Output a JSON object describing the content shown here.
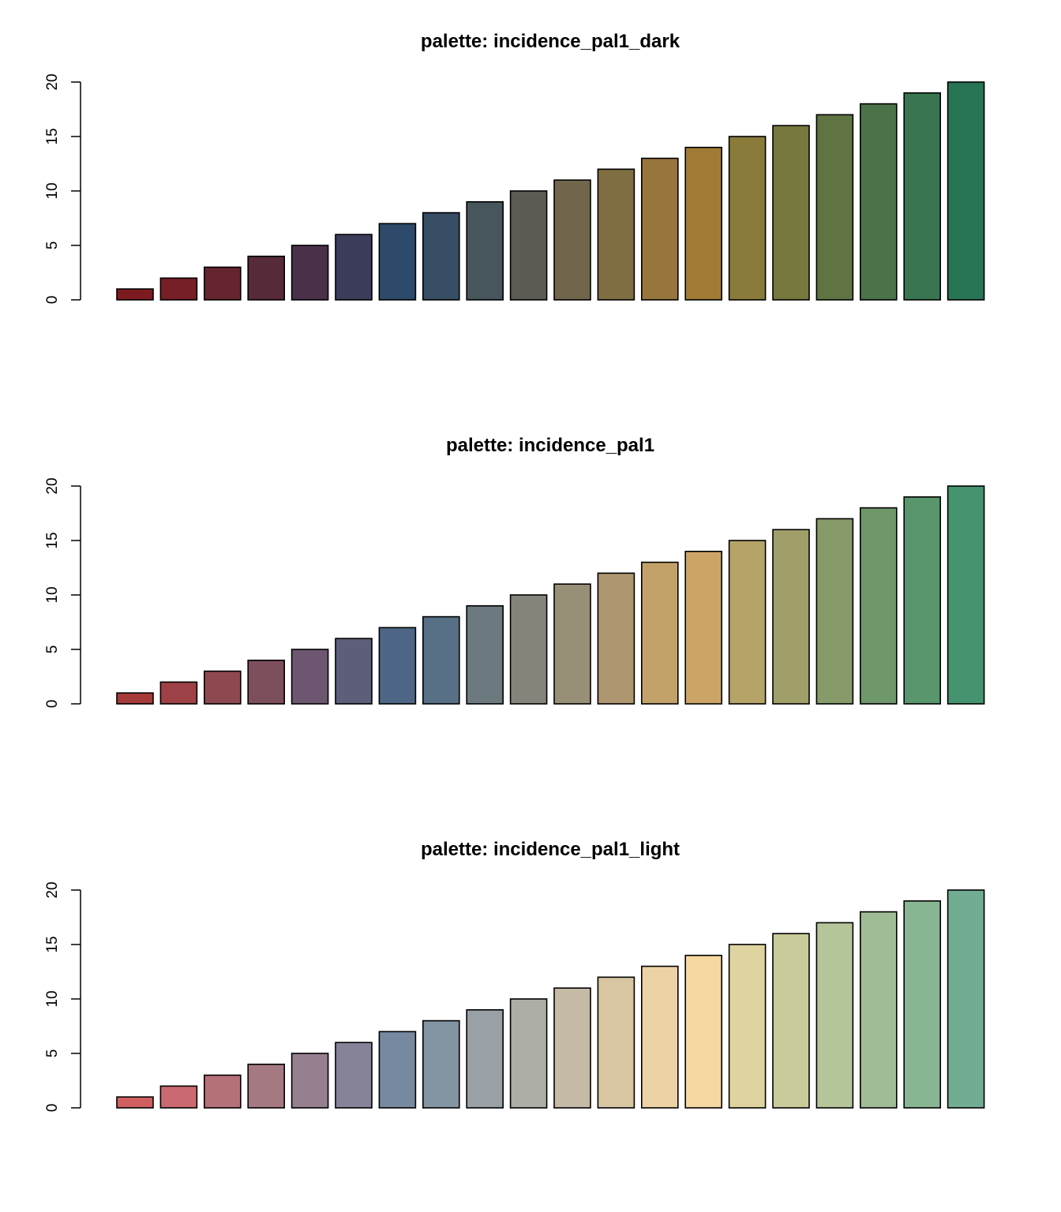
{
  "chart_data": [
    {
      "type": "bar",
      "title": "palette:  incidence_pal1_dark",
      "xlabel": "",
      "ylabel": "",
      "ylim": [
        0,
        20
      ],
      "yticks": [
        "0",
        "5",
        "10",
        "15",
        "20"
      ],
      "values": [
        1,
        2,
        3,
        4,
        5,
        6,
        7,
        8,
        9,
        10,
        11,
        12,
        13,
        14,
        15,
        16,
        17,
        18,
        19,
        20
      ],
      "colors": [
        "#7c1b1f",
        "#771f27",
        "#66242f",
        "#572a39",
        "#4a3149",
        "#3b3d5b",
        "#2d4a6b",
        "#374e65",
        "#47555c",
        "#5b5b53",
        "#71664b",
        "#806e43",
        "#98753c",
        "#a17b35",
        "#8a7b3b",
        "#77783e",
        "#5f7343",
        "#4b7248",
        "#387550",
        "#277555"
      ],
      "grid": false,
      "legend": "none"
    },
    {
      "type": "bar",
      "title": "palette:  incidence_pal1",
      "xlabel": "",
      "ylabel": "",
      "ylim": [
        0,
        20
      ],
      "yticks": [
        "0",
        "5",
        "10",
        "15",
        "20"
      ],
      "values": [
        1,
        2,
        3,
        4,
        5,
        6,
        7,
        8,
        9,
        10,
        11,
        12,
        13,
        14,
        15,
        16,
        17,
        18,
        19,
        20
      ],
      "colors": [
        "#a63939",
        "#9e4147",
        "#8e4850",
        "#7d4e5c",
        "#6d5770",
        "#5c5e7a",
        "#4d6685",
        "#577086",
        "#6c7a80",
        "#84847a",
        "#978f76",
        "#ae9770",
        "#c3a26a",
        "#cca566",
        "#b5a368",
        "#a09f6a",
        "#869a6a",
        "#6f986a",
        "#5a966d",
        "#45936f"
      ],
      "grid": false,
      "legend": "none"
    },
    {
      "type": "bar",
      "title": "palette:  incidence_pal1_light",
      "xlabel": "",
      "ylabel": "",
      "ylim": [
        0,
        20
      ],
      "yticks": [
        "0",
        "5",
        "10",
        "15",
        "20"
      ],
      "values": [
        1,
        2,
        3,
        4,
        5,
        6,
        7,
        8,
        9,
        10,
        11,
        12,
        13,
        14,
        15,
        16,
        17,
        18,
        19,
        20
      ],
      "colors": [
        "#d05f5f",
        "#ca6a70",
        "#b57178",
        "#a57982",
        "#968090",
        "#868399",
        "#7789a0",
        "#8394a3",
        "#99a0a6",
        "#adaea5",
        "#c4baa5",
        "#d8c5a1",
        "#ecd3a5",
        "#f5d8a2",
        "#dfd3a0",
        "#cacb9b",
        "#b5c59a",
        "#9fbc96",
        "#88b594",
        "#72ad93"
      ],
      "grid": false,
      "legend": "none"
    }
  ]
}
